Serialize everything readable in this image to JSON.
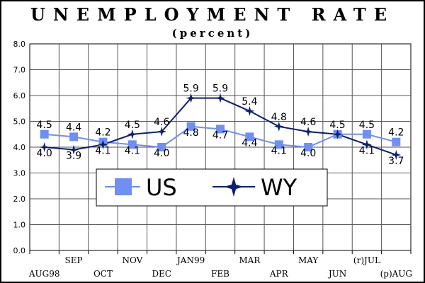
{
  "title": "UNEMPLOYMENT RATE",
  "subtitle": "(percent)",
  "chart_data": {
    "type": "line",
    "title": "UNEMPLOYMENT RATE",
    "subtitle": "(percent)",
    "categories": [
      "AUG98",
      "SEP",
      "OCT",
      "NOV",
      "DEC",
      "JAN99",
      "FEB",
      "MAR",
      "APR",
      "MAY",
      "JUN",
      "(r)JUL",
      "(p)AUG"
    ],
    "series": [
      {
        "name": "US",
        "values": [
          4.5,
          4.4,
          4.2,
          4.1,
          4.0,
          4.8,
          4.7,
          4.4,
          4.1,
          4.0,
          4.5,
          4.5,
          4.2
        ],
        "data_labels": [
          "4.5",
          "4.4",
          "4.2",
          "4.1",
          "4.0",
          "4.8",
          "4.7",
          "4.4",
          "4.1",
          "4.0",
          "4.5",
          "4.5",
          "4.2"
        ],
        "color": "#6f8ff5",
        "marker": "square"
      },
      {
        "name": "WY",
        "values": [
          4.0,
          3.9,
          4.1,
          4.5,
          4.6,
          5.9,
          5.9,
          5.4,
          4.8,
          4.6,
          4.5,
          4.1,
          3.7
        ],
        "data_labels": [
          "4.0",
          "3.9",
          "4.1",
          "4.5",
          "4.6",
          "5.9",
          "5.9",
          "5.4",
          "4.8",
          "4.6",
          "",
          "4.1",
          "3.7"
        ],
        "color": "#0d1f6e",
        "marker": "star"
      }
    ],
    "ylim": [
      0,
      8
    ],
    "yticks": [
      "0.0",
      "1.0",
      "2.0",
      "3.0",
      "4.0",
      "5.0",
      "6.0",
      "7.0",
      "8.0"
    ],
    "grid": true,
    "legend_position": "center"
  }
}
